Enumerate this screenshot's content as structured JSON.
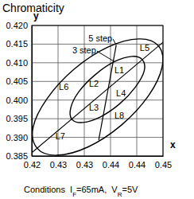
{
  "chart_data": {
    "type": "chromaticity",
    "title": "Chromaticity",
    "x_label": "x",
    "y_label": "y",
    "xlim": [
      0.42,
      0.45
    ],
    "xticks": [
      0.42,
      {
        "value": 0.426,
        "label": "0.43"
      },
      {
        "value": 0.432,
        "label": "0.43"
      },
      {
        "value": 0.438,
        "label": "0.44"
      },
      {
        "value": 0.444,
        "label": "0.44"
      },
      0.45
    ],
    "ylim": [
      0.385,
      0.42
    ],
    "yticks": [
      {
        "value": 0.385,
        "label": "0.385"
      },
      {
        "value": 0.39,
        "label": "0.390"
      },
      {
        "value": 0.395,
        "label": "0.395"
      },
      {
        "value": 0.4,
        "label": "0.400"
      },
      {
        "value": 0.405,
        "label": "0.405"
      },
      {
        "value": 0.41,
        "label": "0.410"
      },
      {
        "value": 0.415,
        "label": "0.415"
      },
      {
        "value": 0.42,
        "label": "0.420"
      }
    ],
    "grid": true,
    "ellipses": [
      {
        "label": "5 step",
        "label_at": [
          0.4384,
          0.4157
        ],
        "points_to": [
          0.4393,
          0.4147
        ],
        "x": [
          0.449,
          0.4498,
          0.4467,
          0.4405,
          0.4328,
          0.4257,
          0.4212,
          0.4203,
          0.4235,
          0.4297,
          0.4374,
          0.4445
        ],
        "y": [
          0.4145,
          0.4089,
          0.4012,
          0.3933,
          0.3874,
          0.3852,
          0.3871,
          0.3927,
          0.4004,
          0.4083,
          0.4142,
          0.4164
        ]
      },
      {
        "label": "3 step",
        "label_at": [
          0.4347,
          0.4125
        ],
        "points_to": [
          0.4389,
          0.4103
        ],
        "x": [
          0.4453,
          0.4457,
          0.4437,
          0.4401,
          0.4357,
          0.4317,
          0.4292,
          0.4289,
          0.4308,
          0.4345,
          0.4389,
          0.4429
        ],
        "y": [
          0.4108,
          0.4078,
          0.4035,
          0.399,
          0.3955,
          0.394,
          0.3948,
          0.3979,
          0.4023,
          0.4068,
          0.4103,
          0.4117
        ]
      }
    ],
    "lines": [
      {
        "x": [
          0.42,
          0.45
        ],
        "y": [
          0.3859,
          0.4155
        ]
      },
      {
        "x": [
          0.4393,
          0.4353
        ],
        "y": [
          0.4147,
          0.3893
        ]
      }
    ],
    "regions": [
      {
        "label": "L1",
        "x": 0.44,
        "y": 0.4078
      },
      {
        "label": "L2",
        "x": 0.4342,
        "y": 0.4042
      },
      {
        "label": "L3",
        "x": 0.4342,
        "y": 0.3978
      },
      {
        "label": "L4",
        "x": 0.4404,
        "y": 0.4016
      },
      {
        "label": "L5",
        "x": 0.4458,
        "y": 0.4138
      },
      {
        "label": "L6",
        "x": 0.4273,
        "y": 0.4034
      },
      {
        "label": "L7",
        "x": 0.4265,
        "y": 0.3901
      },
      {
        "label": "L8",
        "x": 0.44,
        "y": 0.3957
      }
    ],
    "footnote": [
      {
        "text": "Conditions  I"
      },
      {
        "text": "F",
        "sub": true
      },
      {
        "text": "=65mA,  V"
      },
      {
        "text": "R",
        "sub": true
      },
      {
        "text": "=5V"
      }
    ]
  }
}
